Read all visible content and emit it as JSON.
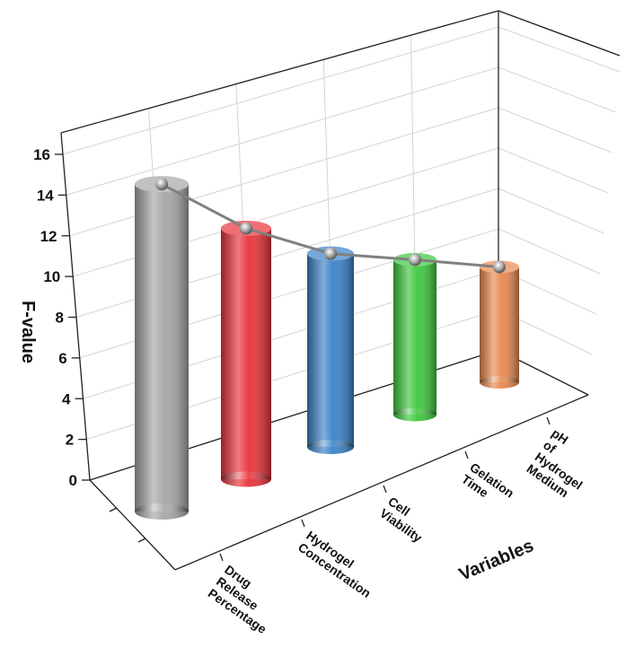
{
  "chart_data": {
    "type": "cylinder-bar",
    "x_label": "Variables",
    "y_label": "F-value",
    "categories": [
      "Drug Release Percentage",
      "Hydrogel Concentration",
      "Cell Viability",
      "Gelation Time",
      "pH of Hydrogel Medium"
    ],
    "values": [
      15.2,
      12.1,
      9.7,
      8.1,
      6.3
    ],
    "colors": [
      "#a6a6a6",
      "#e8323a",
      "#3a82c8",
      "#3cc83c",
      "#e8894f"
    ],
    "line_color": "#808080",
    "ylim": [
      0,
      16
    ],
    "yticks": [
      0,
      2,
      4,
      6,
      8,
      10,
      12,
      14,
      16
    ],
    "grid": true
  }
}
